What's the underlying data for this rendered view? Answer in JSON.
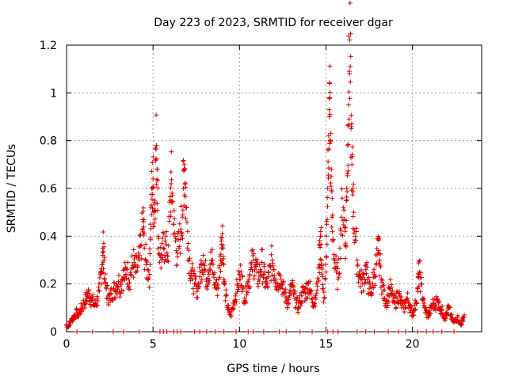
{
  "chart_data": {
    "type": "scatter",
    "title": "Day 223 of 2023, SRMTID for receiver dgar",
    "xlabel": "GPS time / hours",
    "ylabel": "SRMTID / TECUs",
    "xlim": [
      0,
      24
    ],
    "ylim": [
      0,
      1.2
    ],
    "xticks": [
      0,
      5,
      10,
      15,
      20
    ],
    "xtick_labels": [
      "0",
      "5",
      "10",
      "15",
      "20"
    ],
    "yticks": [
      0,
      0.2,
      0.4,
      0.6,
      0.8,
      1.0,
      1.2
    ],
    "ytick_labels": [
      "0",
      "0.2",
      "0.4",
      "0.6",
      "0.8",
      "1",
      "1.2"
    ],
    "grid": true,
    "marker": "+",
    "color": "#e00000",
    "series": [
      {
        "name": "SRMTID",
        "points": [
          [
            0.0,
            0.03
          ],
          [
            0.1,
            0.02
          ],
          [
            0.2,
            0.04
          ],
          [
            0.3,
            0.05
          ],
          [
            0.4,
            0.06
          ],
          [
            0.5,
            0.07
          ],
          [
            0.6,
            0.08
          ],
          [
            0.7,
            0.07
          ],
          [
            0.8,
            0.09
          ],
          [
            0.9,
            0.1
          ],
          [
            1.0,
            0.12
          ],
          [
            1.1,
            0.13
          ],
          [
            1.2,
            0.15
          ],
          [
            1.3,
            0.16
          ],
          [
            1.4,
            0.14
          ],
          [
            1.5,
            0.13
          ],
          [
            1.6,
            0.11
          ],
          [
            1.7,
            0.12
          ],
          [
            1.8,
            0.14
          ],
          [
            1.9,
            0.17
          ],
          [
            2.0,
            0.25
          ],
          [
            2.05,
            0.28
          ],
          [
            2.1,
            0.32
          ],
          [
            2.15,
            0.37
          ],
          [
            2.2,
            0.22
          ],
          [
            2.3,
            0.18
          ],
          [
            2.4,
            0.15
          ],
          [
            2.5,
            0.14
          ],
          [
            2.6,
            0.16
          ],
          [
            2.7,
            0.18
          ],
          [
            2.8,
            0.17
          ],
          [
            2.9,
            0.2
          ],
          [
            3.0,
            0.21
          ],
          [
            3.1,
            0.19
          ],
          [
            3.2,
            0.22
          ],
          [
            3.3,
            0.23
          ],
          [
            3.4,
            0.24
          ],
          [
            3.5,
            0.26
          ],
          [
            3.6,
            0.22
          ],
          [
            3.7,
            0.24
          ],
          [
            3.8,
            0.27
          ],
          [
            3.9,
            0.29
          ],
          [
            4.0,
            0.25
          ],
          [
            4.1,
            0.27
          ],
          [
            4.2,
            0.3
          ],
          [
            4.3,
            0.36
          ],
          [
            4.4,
            0.43
          ],
          [
            4.45,
            0.46
          ],
          [
            4.5,
            0.35
          ],
          [
            4.6,
            0.28
          ],
          [
            4.7,
            0.26
          ],
          [
            4.8,
            0.24
          ],
          [
            4.85,
            0.45
          ],
          [
            4.9,
            0.53
          ],
          [
            4.95,
            0.6
          ],
          [
            5.0,
            0.64
          ],
          [
            5.05,
            0.5
          ],
          [
            5.1,
            0.55
          ],
          [
            5.15,
            0.72
          ],
          [
            5.2,
            0.78
          ],
          [
            5.25,
            0.68
          ],
          [
            5.3,
            0.4
          ],
          [
            5.4,
            0.32
          ],
          [
            5.5,
            0.3
          ],
          [
            5.6,
            0.35
          ],
          [
            5.7,
            0.38
          ],
          [
            5.8,
            0.33
          ],
          [
            5.9,
            0.36
          ],
          [
            6.0,
            0.55
          ],
          [
            6.05,
            0.62
          ],
          [
            6.1,
            0.58
          ],
          [
            6.2,
            0.45
          ],
          [
            6.3,
            0.38
          ],
          [
            6.4,
            0.33
          ],
          [
            6.5,
            0.35
          ],
          [
            6.6,
            0.43
          ],
          [
            6.7,
            0.48
          ],
          [
            6.75,
            0.6
          ],
          [
            6.8,
            0.7
          ],
          [
            6.85,
            0.68
          ],
          [
            6.9,
            0.52
          ],
          [
            7.0,
            0.42
          ],
          [
            7.1,
            0.3
          ],
          [
            7.2,
            0.25
          ],
          [
            7.3,
            0.22
          ],
          [
            7.4,
            0.2
          ],
          [
            7.5,
            0.19
          ],
          [
            7.6,
            0.18
          ],
          [
            7.7,
            0.23
          ],
          [
            7.8,
            0.28
          ],
          [
            7.9,
            0.32
          ],
          [
            8.0,
            0.26
          ],
          [
            8.1,
            0.22
          ],
          [
            8.2,
            0.25
          ],
          [
            8.3,
            0.28
          ],
          [
            8.4,
            0.3
          ],
          [
            8.5,
            0.24
          ],
          [
            8.6,
            0.2
          ],
          [
            8.7,
            0.18
          ],
          [
            8.8,
            0.22
          ],
          [
            8.9,
            0.3
          ],
          [
            8.95,
            0.38
          ],
          [
            9.0,
            0.41
          ],
          [
            9.05,
            0.35
          ],
          [
            9.1,
            0.22
          ],
          [
            9.2,
            0.15
          ],
          [
            9.3,
            0.11
          ],
          [
            9.4,
            0.08
          ],
          [
            9.5,
            0.07
          ],
          [
            9.6,
            0.1
          ],
          [
            9.7,
            0.13
          ],
          [
            9.8,
            0.16
          ],
          [
            9.9,
            0.2
          ],
          [
            10.0,
            0.22
          ],
          [
            10.1,
            0.25
          ],
          [
            10.2,
            0.18
          ],
          [
            10.3,
            0.14
          ],
          [
            10.4,
            0.17
          ],
          [
            10.5,
            0.21
          ],
          [
            10.6,
            0.24
          ],
          [
            10.7,
            0.27
          ],
          [
            10.8,
            0.3
          ],
          [
            10.9,
            0.28
          ],
          [
            11.0,
            0.25
          ],
          [
            11.1,
            0.22
          ],
          [
            11.2,
            0.26
          ],
          [
            11.3,
            0.29
          ],
          [
            11.4,
            0.24
          ],
          [
            11.5,
            0.21
          ],
          [
            11.6,
            0.19
          ],
          [
            11.7,
            0.23
          ],
          [
            11.8,
            0.27
          ],
          [
            11.9,
            0.3
          ],
          [
            12.0,
            0.26
          ],
          [
            12.1,
            0.22
          ],
          [
            12.2,
            0.2
          ],
          [
            12.3,
            0.24
          ],
          [
            12.4,
            0.22
          ],
          [
            12.5,
            0.18
          ],
          [
            12.6,
            0.16
          ],
          [
            12.7,
            0.14
          ],
          [
            12.8,
            0.12
          ],
          [
            12.9,
            0.15
          ],
          [
            13.0,
            0.19
          ],
          [
            13.1,
            0.17
          ],
          [
            13.2,
            0.14
          ],
          [
            13.3,
            0.12
          ],
          [
            13.4,
            0.1
          ],
          [
            13.5,
            0.13
          ],
          [
            13.6,
            0.15
          ],
          [
            13.7,
            0.17
          ],
          [
            13.8,
            0.16
          ],
          [
            13.9,
            0.18
          ],
          [
            14.0,
            0.2
          ],
          [
            14.1,
            0.17
          ],
          [
            14.2,
            0.14
          ],
          [
            14.3,
            0.12
          ],
          [
            14.4,
            0.15
          ],
          [
            14.5,
            0.19
          ],
          [
            14.6,
            0.28
          ],
          [
            14.65,
            0.36
          ],
          [
            14.7,
            0.4
          ],
          [
            14.75,
            0.3
          ],
          [
            14.8,
            0.18
          ],
          [
            14.9,
            0.14
          ],
          [
            15.0,
            0.25
          ],
          [
            15.05,
            0.45
          ],
          [
            15.1,
            0.6
          ],
          [
            15.15,
            0.82
          ],
          [
            15.2,
            0.9
          ],
          [
            15.22,
            0.98
          ],
          [
            15.25,
            0.8
          ],
          [
            15.3,
            0.65
          ],
          [
            15.35,
            0.48
          ],
          [
            15.4,
            0.38
          ],
          [
            15.5,
            0.3
          ],
          [
            15.6,
            0.25
          ],
          [
            15.7,
            0.22
          ],
          [
            15.8,
            0.35
          ],
          [
            15.9,
            0.48
          ],
          [
            16.0,
            0.52
          ],
          [
            16.1,
            0.42
          ],
          [
            16.15,
            0.36
          ],
          [
            16.2,
            0.6
          ],
          [
            16.25,
            0.78
          ],
          [
            16.3,
            0.95
          ],
          [
            16.35,
            1.09
          ],
          [
            16.4,
            1.11
          ],
          [
            16.45,
            0.85
          ],
          [
            16.5,
            0.7
          ],
          [
            16.55,
            0.6
          ],
          [
            16.6,
            0.5
          ],
          [
            16.7,
            0.4
          ],
          [
            16.8,
            0.3
          ],
          [
            16.9,
            0.24
          ],
          [
            17.0,
            0.22
          ],
          [
            17.1,
            0.2
          ],
          [
            17.2,
            0.24
          ],
          [
            17.3,
            0.26
          ],
          [
            17.4,
            0.22
          ],
          [
            17.5,
            0.18
          ],
          [
            17.6,
            0.16
          ],
          [
            17.7,
            0.2
          ],
          [
            17.8,
            0.24
          ],
          [
            17.9,
            0.28
          ],
          [
            18.0,
            0.33
          ],
          [
            18.05,
            0.34
          ],
          [
            18.1,
            0.3
          ],
          [
            18.2,
            0.22
          ],
          [
            18.3,
            0.17
          ],
          [
            18.4,
            0.14
          ],
          [
            18.5,
            0.13
          ],
          [
            18.6,
            0.15
          ],
          [
            18.7,
            0.18
          ],
          [
            18.8,
            0.16
          ],
          [
            18.9,
            0.13
          ],
          [
            19.0,
            0.12
          ],
          [
            19.1,
            0.14
          ],
          [
            19.2,
            0.16
          ],
          [
            19.3,
            0.13
          ],
          [
            19.4,
            0.11
          ],
          [
            19.5,
            0.1
          ],
          [
            19.6,
            0.12
          ],
          [
            19.7,
            0.14
          ],
          [
            19.8,
            0.12
          ],
          [
            19.9,
            0.09
          ],
          [
            20.0,
            0.08
          ],
          [
            20.1,
            0.09
          ],
          [
            20.2,
            0.12
          ],
          [
            20.3,
            0.18
          ],
          [
            20.35,
            0.23
          ],
          [
            20.4,
            0.25
          ],
          [
            20.5,
            0.2
          ],
          [
            20.6,
            0.14
          ],
          [
            20.7,
            0.1
          ],
          [
            20.8,
            0.08
          ],
          [
            20.9,
            0.07
          ],
          [
            21.0,
            0.08
          ],
          [
            21.1,
            0.1
          ],
          [
            21.2,
            0.12
          ],
          [
            21.3,
            0.11
          ],
          [
            21.4,
            0.13
          ],
          [
            21.5,
            0.12
          ],
          [
            21.6,
            0.1
          ],
          [
            21.7,
            0.09
          ],
          [
            21.8,
            0.07
          ],
          [
            21.9,
            0.06
          ],
          [
            22.0,
            0.08
          ],
          [
            22.1,
            0.1
          ],
          [
            22.2,
            0.07
          ],
          [
            22.3,
            0.05
          ],
          [
            22.4,
            0.04
          ],
          [
            22.5,
            0.05
          ],
          [
            22.6,
            0.06
          ],
          [
            22.7,
            0.04
          ],
          [
            22.8,
            0.03
          ],
          [
            22.9,
            0.05
          ],
          [
            23.0,
            0.07
          ]
        ],
        "zero_points": [
          0.6,
          1.5,
          2.7,
          3.3,
          4.2,
          5.4,
          5.6,
          5.8,
          6.2,
          6.4,
          6.6,
          7.4,
          7.7,
          8.1,
          8.6,
          9.1,
          9.8,
          10.5,
          10.8,
          11.4,
          12.3,
          12.7,
          13.5,
          14.2,
          15.1,
          15.4,
          15.7,
          16.8,
          17.3,
          17.8,
          18.6,
          19.2,
          19.6,
          20.3,
          20.8,
          21.2,
          21.7,
          22.4
        ]
      }
    ]
  }
}
